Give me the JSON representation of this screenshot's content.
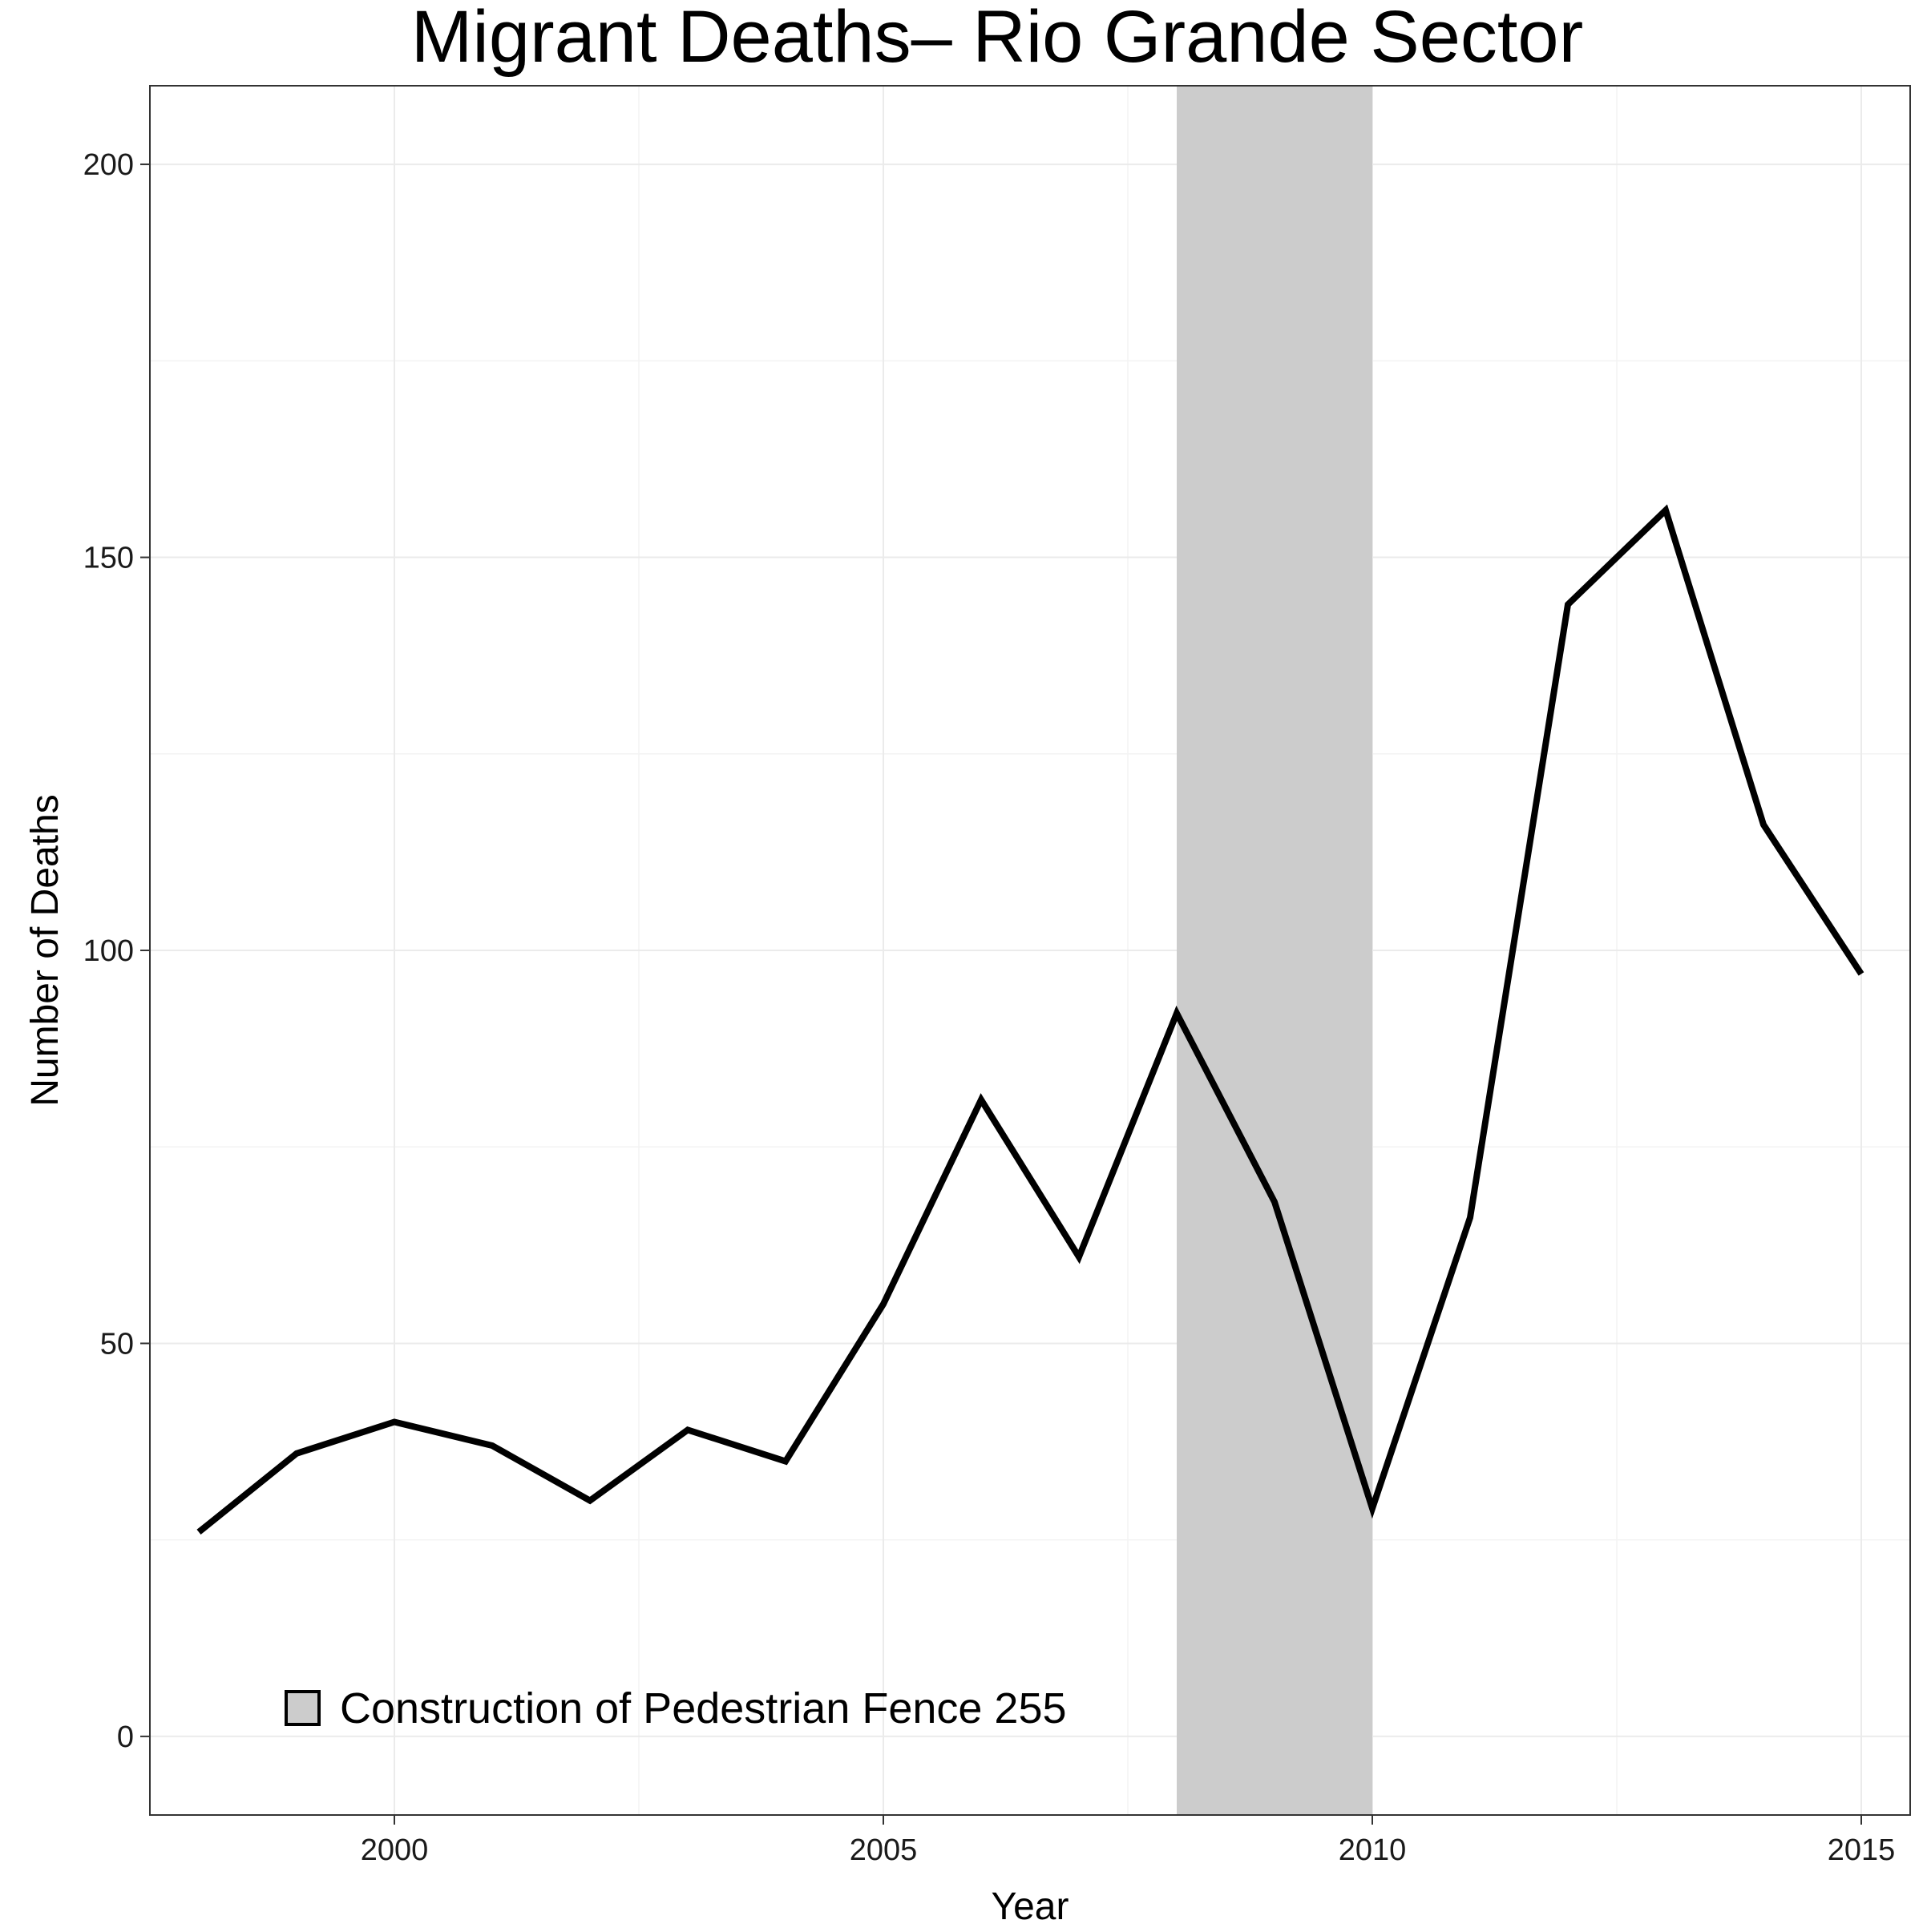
{
  "chart_data": {
    "type": "line",
    "title": "Migrant Deaths– Rio Grande Sector",
    "xlabel": "Year",
    "ylabel": "Number of Deaths",
    "xlim": [
      1997.5,
      2015.5
    ],
    "ylim": [
      -10,
      210
    ],
    "x_ticks": [
      2000,
      2005,
      2010,
      2015
    ],
    "y_ticks": [
      0,
      50,
      100,
      150,
      200
    ],
    "grid": true,
    "series": [
      {
        "x": [
          1998,
          1999,
          2000,
          2001,
          2002,
          2003,
          2004,
          2005,
          2006,
          2007,
          2008,
          2009,
          2010,
          2011,
          2012,
          2013,
          2014,
          2015
        ],
        "y": [
          26,
          36,
          40,
          37,
          30,
          39,
          35,
          55,
          81,
          61,
          92,
          68,
          29,
          66,
          144,
          156,
          116,
          97
        ],
        "color": "#000000"
      }
    ],
    "shaded_region": {
      "x_start": 2008,
      "x_end": 2010,
      "color": "#cccccc",
      "label": "Construction of Pedestrian Fence 255"
    },
    "legend_position": "bottom-left"
  }
}
